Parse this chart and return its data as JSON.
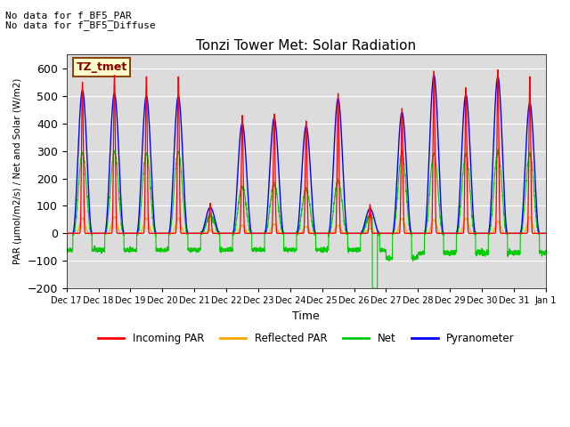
{
  "title": "Tonzi Tower Met: Solar Radiation",
  "xlabel": "Time",
  "ylabel": "PAR (μmol/m2/s) / Net and Solar (W/m2)",
  "ylim": [
    -200,
    650
  ],
  "yticks": [
    -200,
    -100,
    0,
    100,
    200,
    300,
    400,
    500,
    600
  ],
  "xlim_days": [
    0,
    15
  ],
  "xtick_labels": [
    "Dec 17",
    "Dec 18",
    "Dec 19",
    "Dec 20",
    "Dec 21",
    "Dec 22",
    "Dec 23",
    "Dec 24",
    "Dec 25",
    "Dec 26",
    "Dec 27",
    "Dec 28",
    "Dec 29",
    "Dec 30",
    "Dec 31",
    "Jan 1"
  ],
  "note1": "No data for f_BF5_PAR",
  "note2": "No data for f_BF5_Diffuse",
  "legend_label": "TZ_tmet",
  "legend_entries": [
    "Incoming PAR",
    "Reflected PAR",
    "Net",
    "Pyranometer"
  ],
  "colors": {
    "incoming": "#ff0000",
    "reflected": "#ffa500",
    "net": "#00cc00",
    "pyranometer": "#0000ff"
  },
  "bg_color": "#dcdcdc",
  "grid_color": "#ffffff",
  "peaks_incoming": [
    550,
    575,
    570,
    570,
    110,
    430,
    435,
    410,
    510,
    105,
    455,
    590,
    530,
    595,
    570
  ],
  "peaks_pyrano": [
    520,
    510,
    500,
    500,
    95,
    400,
    420,
    390,
    490,
    90,
    440,
    575,
    505,
    570,
    475
  ],
  "peaks_reflected": [
    55,
    60,
    55,
    55,
    12,
    30,
    35,
    25,
    30,
    18,
    55,
    50,
    55,
    45,
    60
  ],
  "peaks_net_day": [
    290,
    295,
    290,
    295,
    65,
    170,
    180,
    160,
    190,
    65,
    290,
    290,
    290,
    295,
    290
  ],
  "night_net_base": -60,
  "dip_day": 9,
  "dip_value": -200,
  "n_pts_per_day": 240
}
